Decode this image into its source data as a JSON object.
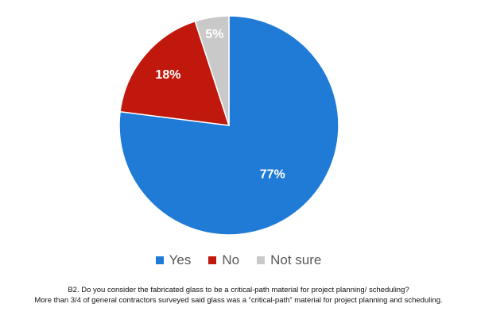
{
  "chart_data": {
    "type": "pie",
    "title": "",
    "categories": [
      "Yes",
      "No",
      "Not sure"
    ],
    "values": [
      77,
      18,
      5
    ],
    "labels": [
      "77%",
      "18%",
      "5%"
    ],
    "colors": [
      "#1f7bd6",
      "#c0180c",
      "#c9c9c9"
    ],
    "label_colors": [
      "#ffffff",
      "#ffffff",
      "#ffffff"
    ],
    "legend_position": "bottom"
  },
  "legend": {
    "items": [
      {
        "label": "Yes",
        "color": "#1f7bd6"
      },
      {
        "label": "No",
        "color": "#c0180c"
      },
      {
        "label": "Not sure",
        "color": "#c9c9c9"
      }
    ]
  },
  "caption": {
    "line1": "B2. Do you consider the fabricated glass to be a critical-path material for project planning/ scheduling?",
    "line2": "More than 3/4 of general contractors surveyed said glass was a “critical-path” material for project planning and scheduling."
  }
}
